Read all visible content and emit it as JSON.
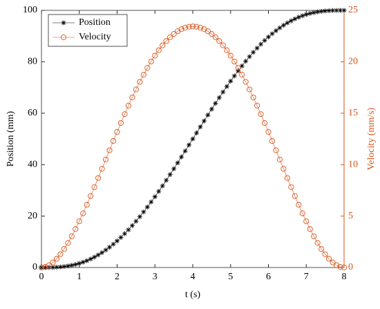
{
  "chart_data": {
    "type": "line",
    "xlabel": "t (s)",
    "ylabel": "Position (mm)",
    "y2label": "Velocity (mm/s)",
    "x": [
      0,
      0.1,
      0.2,
      0.3,
      0.4,
      0.5,
      0.6,
      0.7,
      0.8,
      0.9,
      1,
      1.1,
      1.2,
      1.3,
      1.4,
      1.5,
      1.6,
      1.7,
      1.8,
      1.9,
      2,
      2.1,
      2.2,
      2.3,
      2.4,
      2.5,
      2.6,
      2.7,
      2.8,
      2.9,
      3,
      3.1,
      3.2,
      3.3,
      3.4,
      3.5,
      3.6,
      3.7,
      3.8,
      3.9,
      4,
      4.1,
      4.2,
      4.3,
      4.4,
      4.5,
      4.6,
      4.7,
      4.8,
      4.9,
      5,
      5.1,
      5.2,
      5.3,
      5.4,
      5.5,
      5.6,
      5.7,
      5.8,
      5.9,
      6,
      6.1,
      6.2,
      6.3,
      6.4,
      6.5,
      6.6,
      6.7,
      6.8,
      6.9,
      7,
      7.1,
      7.2,
      7.3,
      7.4,
      7.5,
      7.6,
      7.7,
      7.8,
      7.9,
      8
    ],
    "series": [
      {
        "name": "Position",
        "color": "#000000",
        "marker": "asterisk",
        "values": [
          0,
          0,
          0.02,
          0.05,
          0.12,
          0.22,
          0.38,
          0.59,
          0.86,
          1.19,
          1.61,
          2.09,
          2.66,
          3.31,
          4.05,
          4.88,
          5.79,
          6.8,
          7.89,
          9.08,
          10.35,
          11.71,
          13.16,
          14.69,
          16.31,
          18,
          19.77,
          21.61,
          23.52,
          25.49,
          27.52,
          29.61,
          31.74,
          33.93,
          36.15,
          38.4,
          40.69,
          43,
          45.32,
          47.66,
          50,
          52.34,
          54.68,
          57,
          59.31,
          61.6,
          63.85,
          66.07,
          68.26,
          70.39,
          72.48,
          74.51,
          76.48,
          78.39,
          80.23,
          82,
          83.69,
          85.31,
          86.84,
          88.29,
          89.65,
          90.92,
          92.11,
          93.2,
          94.21,
          95.12,
          95.95,
          96.69,
          97.34,
          97.91,
          98.39,
          98.81,
          99.14,
          99.41,
          99.62,
          99.78,
          99.88,
          99.95,
          99.98,
          100,
          100
        ]
      },
      {
        "name": "Velocity",
        "color": "#d95319",
        "marker": "circle",
        "axis": "y2",
        "values": [
          0,
          0.06,
          0.22,
          0.49,
          0.85,
          1.29,
          1.8,
          2.39,
          3.04,
          3.74,
          4.49,
          5.27,
          6.1,
          6.95,
          7.82,
          8.7,
          9.6,
          10.5,
          11.4,
          12.3,
          13.18,
          14.05,
          14.91,
          15.74,
          16.54,
          17.31,
          18.05,
          18.75,
          19.41,
          20.03,
          20.6,
          21.12,
          21.6,
          22.02,
          22.39,
          22.71,
          22.97,
          23.17,
          23.32,
          23.41,
          23.44,
          23.41,
          23.32,
          23.17,
          22.97,
          22.71,
          22.39,
          22.02,
          21.6,
          21.12,
          20.6,
          20.03,
          19.41,
          18.75,
          18.05,
          17.31,
          16.54,
          15.74,
          14.91,
          14.05,
          13.18,
          12.3,
          11.4,
          10.5,
          9.6,
          8.7,
          7.82,
          6.95,
          6.1,
          5.27,
          4.49,
          3.74,
          3.04,
          2.39,
          1.8,
          1.29,
          0.85,
          0.49,
          0.22,
          0.06,
          0
        ]
      }
    ],
    "xlim": [
      0,
      8
    ],
    "xticks": [
      0,
      1,
      2,
      3,
      4,
      5,
      6,
      7,
      8
    ],
    "ylim": [
      0,
      100
    ],
    "yticks": [
      0,
      20,
      40,
      60,
      80,
      100
    ],
    "y2lim": [
      0,
      25
    ],
    "y2ticks": [
      0,
      5,
      10,
      15,
      20,
      25
    ],
    "legend": "upper left"
  }
}
